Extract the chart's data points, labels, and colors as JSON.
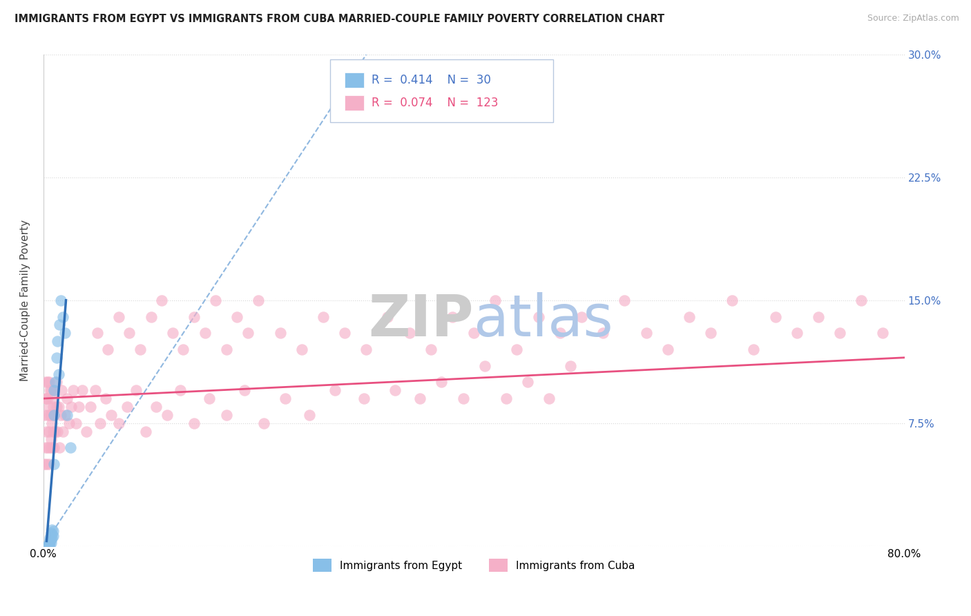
{
  "title": "IMMIGRANTS FROM EGYPT VS IMMIGRANTS FROM CUBA MARRIED-COUPLE FAMILY POVERTY CORRELATION CHART",
  "source": "Source: ZipAtlas.com",
  "ylabel": "Married-Couple Family Poverty",
  "xlim": [
    0.0,
    0.8
  ],
  "ylim": [
    0.0,
    0.3
  ],
  "xtick_positions": [
    0.0,
    0.2,
    0.4,
    0.6,
    0.8
  ],
  "xtick_labels": [
    "0.0%",
    "",
    "",
    "",
    "80.0%"
  ],
  "ytick_positions": [
    0.0,
    0.075,
    0.15,
    0.225,
    0.3
  ],
  "ytick_labels_right": [
    "",
    "7.5%",
    "15.0%",
    "22.5%",
    "30.0%"
  ],
  "egypt_R": "0.414",
  "egypt_N": "30",
  "cuba_R": "0.074",
  "cuba_N": "123",
  "egypt_scatter_color": "#88bfe8",
  "cuba_scatter_color": "#f5b0c8",
  "egypt_line_color": "#3070b8",
  "cuba_line_color": "#e85080",
  "dashed_line_color": "#90b8e0",
  "watermark_color": "#dde8f5",
  "legend_box_color": "#e8f0f8",
  "egypt_x": [
    0.003,
    0.004,
    0.004,
    0.005,
    0.005,
    0.005,
    0.006,
    0.006,
    0.006,
    0.007,
    0.007,
    0.007,
    0.008,
    0.008,
    0.008,
    0.009,
    0.009,
    0.01,
    0.01,
    0.01,
    0.011,
    0.012,
    0.013,
    0.014,
    0.015,
    0.016,
    0.018,
    0.02,
    0.022,
    0.025
  ],
  "egypt_y": [
    0.0,
    0.0,
    0.0,
    0.0,
    0.001,
    0.002,
    0.001,
    0.003,
    0.005,
    0.002,
    0.004,
    0.008,
    0.005,
    0.007,
    0.01,
    0.006,
    0.009,
    0.05,
    0.08,
    0.095,
    0.1,
    0.115,
    0.125,
    0.105,
    0.135,
    0.15,
    0.14,
    0.13,
    0.08,
    0.06
  ],
  "cuba_x": [
    0.001,
    0.001,
    0.002,
    0.002,
    0.002,
    0.003,
    0.003,
    0.003,
    0.004,
    0.004,
    0.004,
    0.004,
    0.005,
    0.005,
    0.005,
    0.005,
    0.006,
    0.006,
    0.006,
    0.007,
    0.007,
    0.007,
    0.008,
    0.008,
    0.008,
    0.009,
    0.009,
    0.01,
    0.01,
    0.01,
    0.011,
    0.012,
    0.012,
    0.013,
    0.014,
    0.015,
    0.016,
    0.017,
    0.018,
    0.02,
    0.022,
    0.024,
    0.026,
    0.028,
    0.03,
    0.033,
    0.036,
    0.04,
    0.044,
    0.048,
    0.053,
    0.058,
    0.063,
    0.07,
    0.078,
    0.086,
    0.095,
    0.105,
    0.115,
    0.127,
    0.14,
    0.154,
    0.17,
    0.187,
    0.205,
    0.225,
    0.247,
    0.271,
    0.298,
    0.327,
    0.05,
    0.06,
    0.07,
    0.08,
    0.09,
    0.1,
    0.11,
    0.12,
    0.13,
    0.14,
    0.15,
    0.16,
    0.17,
    0.18,
    0.19,
    0.2,
    0.22,
    0.24,
    0.26,
    0.28,
    0.3,
    0.32,
    0.34,
    0.36,
    0.38,
    0.4,
    0.42,
    0.44,
    0.46,
    0.48,
    0.5,
    0.52,
    0.54,
    0.56,
    0.58,
    0.6,
    0.62,
    0.64,
    0.66,
    0.68,
    0.7,
    0.72,
    0.74,
    0.76,
    0.78,
    0.35,
    0.37,
    0.39,
    0.41,
    0.43,
    0.45,
    0.47,
    0.49
  ],
  "cuba_y": [
    0.05,
    0.08,
    0.06,
    0.09,
    0.1,
    0.05,
    0.07,
    0.09,
    0.06,
    0.08,
    0.09,
    0.1,
    0.05,
    0.07,
    0.085,
    0.1,
    0.06,
    0.08,
    0.095,
    0.065,
    0.08,
    0.095,
    0.06,
    0.075,
    0.09,
    0.07,
    0.085,
    0.06,
    0.08,
    0.095,
    0.07,
    0.085,
    0.1,
    0.07,
    0.085,
    0.06,
    0.08,
    0.095,
    0.07,
    0.08,
    0.09,
    0.075,
    0.085,
    0.095,
    0.075,
    0.085,
    0.095,
    0.07,
    0.085,
    0.095,
    0.075,
    0.09,
    0.08,
    0.075,
    0.085,
    0.095,
    0.07,
    0.085,
    0.08,
    0.095,
    0.075,
    0.09,
    0.08,
    0.095,
    0.075,
    0.09,
    0.08,
    0.095,
    0.09,
    0.095,
    0.13,
    0.12,
    0.14,
    0.13,
    0.12,
    0.14,
    0.15,
    0.13,
    0.12,
    0.14,
    0.13,
    0.15,
    0.12,
    0.14,
    0.13,
    0.15,
    0.13,
    0.12,
    0.14,
    0.13,
    0.12,
    0.14,
    0.13,
    0.12,
    0.14,
    0.13,
    0.15,
    0.12,
    0.14,
    0.13,
    0.14,
    0.13,
    0.15,
    0.13,
    0.12,
    0.14,
    0.13,
    0.15,
    0.12,
    0.14,
    0.13,
    0.14,
    0.13,
    0.15,
    0.13,
    0.09,
    0.1,
    0.09,
    0.11,
    0.09,
    0.1,
    0.09,
    0.11
  ],
  "cuba_line_x0": 0.0,
  "cuba_line_y0": 0.09,
  "cuba_line_x1": 0.8,
  "cuba_line_y1": 0.115,
  "egypt_line_x0": 0.003,
  "egypt_line_y0": 0.003,
  "egypt_line_x1": 0.021,
  "egypt_line_y1": 0.15
}
